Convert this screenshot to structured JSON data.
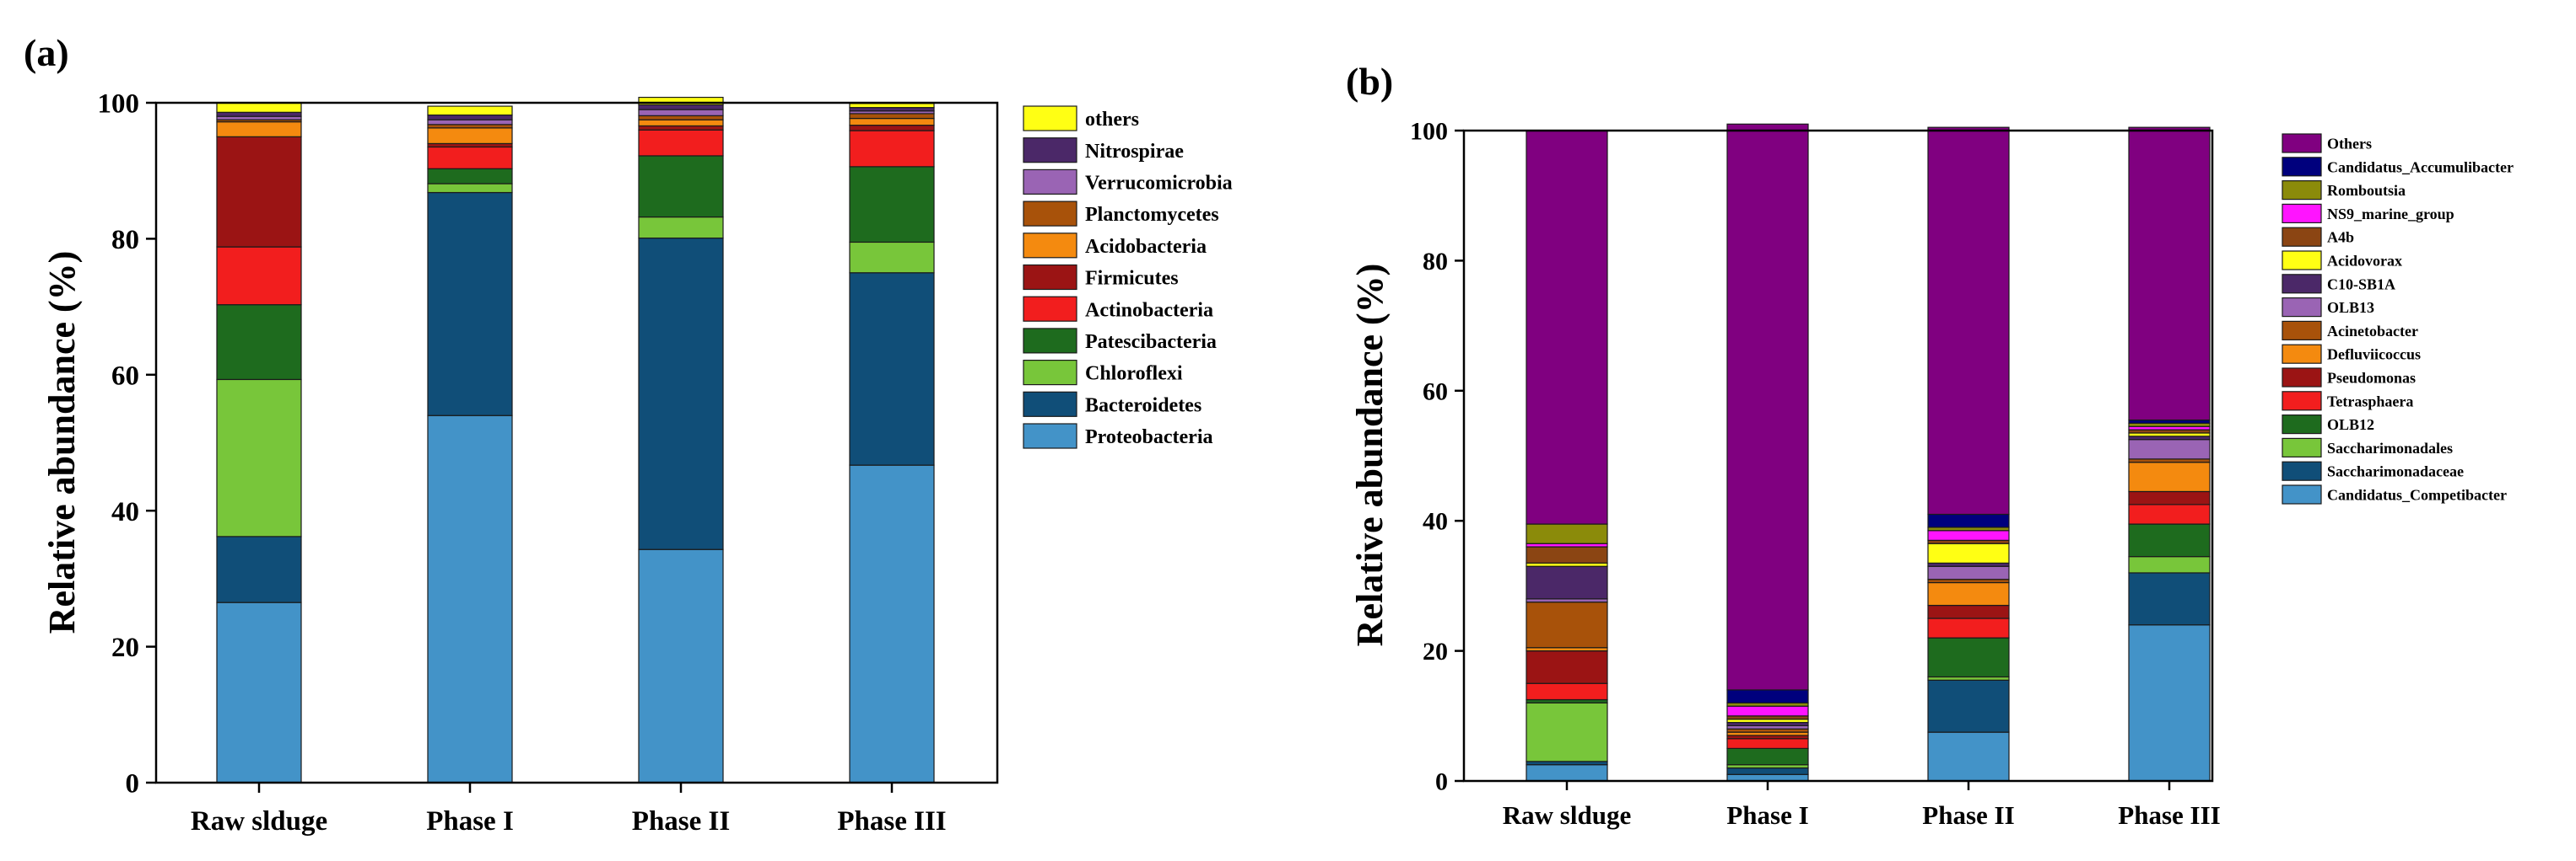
{
  "chart_data": [
    {
      "type": "stacked-bar",
      "panel_label": "(a)",
      "ylabel": "Relative abundance (%)",
      "xlabel": "",
      "ylim": [
        0,
        100
      ],
      "yticks": [
        0,
        20,
        40,
        60,
        80,
        100
      ],
      "categories": [
        "Raw slduge",
        "Phase I",
        "Phase II",
        "Phase III"
      ],
      "legend_position": "right",
      "series": [
        {
          "name": "Proteobacteria",
          "color": "#4393C8",
          "values": [
            26.5,
            54.0,
            34.3,
            46.7
          ]
        },
        {
          "name": "Bacteroidetes",
          "color": "#104E78",
          "values": [
            9.7,
            32.8,
            45.8,
            28.3
          ]
        },
        {
          "name": "Chloroflexi",
          "color": "#78C63A",
          "values": [
            23.1,
            1.3,
            3.1,
            4.5
          ]
        },
        {
          "name": "Patescibacteria",
          "color": "#1E6B1E",
          "values": [
            11.0,
            2.2,
            9.0,
            11.1
          ]
        },
        {
          "name": "Actinobacteria",
          "color": "#F21E1E",
          "values": [
            8.5,
            3.2,
            3.8,
            5.3
          ]
        },
        {
          "name": "Firmicutes",
          "color": "#9B1414",
          "values": [
            16.2,
            0.5,
            0.6,
            0.8
          ]
        },
        {
          "name": "Acidobacteria",
          "color": "#F48A0F",
          "values": [
            2.2,
            2.3,
            0.9,
            1.0
          ]
        },
        {
          "name": "Planctomycetes",
          "color": "#A8520A",
          "values": [
            0.3,
            0.5,
            0.6,
            0.7
          ]
        },
        {
          "name": "Verrucomicrobia",
          "color": "#9A64B4",
          "values": [
            0.5,
            0.7,
            0.9,
            0.4
          ]
        },
        {
          "name": "Nitrospirae",
          "color": "#4B2868",
          "values": [
            0.6,
            0.7,
            0.7,
            0.5
          ]
        },
        {
          "name": "others",
          "color": "#FFFF14",
          "values": [
            1.4,
            1.3,
            1.1,
            0.6
          ]
        }
      ]
    },
    {
      "type": "stacked-bar",
      "panel_label": "(b)",
      "ylabel": "Relative abundance (%)",
      "xlabel": "",
      "ylim": [
        0,
        100
      ],
      "yticks": [
        0,
        20,
        40,
        60,
        80,
        100
      ],
      "categories": [
        "Raw slduge",
        "Phase I",
        "Phase II",
        "Phase III"
      ],
      "legend_position": "right",
      "series": [
        {
          "name": "Candidatus_Competibacter",
          "color": "#4393C8",
          "values": [
            2.5,
            1.0,
            7.5,
            24.0
          ]
        },
        {
          "name": "Saccharimonadaceae",
          "color": "#104E78",
          "values": [
            0.5,
            1.0,
            8.0,
            8.0
          ]
        },
        {
          "name": "Saccharimonadales",
          "color": "#78C63A",
          "values": [
            9.0,
            0.5,
            0.5,
            2.5
          ]
        },
        {
          "name": "OLB12",
          "color": "#1E6B1E",
          "values": [
            0.5,
            2.5,
            6.0,
            5.0
          ]
        },
        {
          "name": "Tetrasphaera",
          "color": "#F21E1E",
          "values": [
            2.5,
            1.5,
            3.0,
            3.0
          ]
        },
        {
          "name": "Pseudomonas",
          "color": "#9B1414",
          "values": [
            5.0,
            0.5,
            2.0,
            2.0
          ]
        },
        {
          "name": "Defluviicoccus",
          "color": "#F48A0F",
          "values": [
            0.5,
            0.5,
            3.5,
            4.5
          ]
        },
        {
          "name": "Acinetobacter",
          "color": "#A8520A",
          "values": [
            7.0,
            0.5,
            0.5,
            0.5
          ]
        },
        {
          "name": "OLB13",
          "color": "#9A64B4",
          "values": [
            0.5,
            0.5,
            2.0,
            3.0
          ]
        },
        {
          "name": "C10-SB1A",
          "color": "#4B2868",
          "values": [
            5.0,
            0.5,
            0.5,
            0.5
          ]
        },
        {
          "name": "Acidovorax",
          "color": "#FFFF14",
          "values": [
            0.5,
            0.5,
            3.0,
            0.5
          ]
        },
        {
          "name": "A4b",
          "color": "#8B4513",
          "values": [
            2.5,
            0.5,
            0.5,
            0.5
          ]
        },
        {
          "name": "NS9_marine_group",
          "color": "#FF14FF",
          "values": [
            0.5,
            1.5,
            1.5,
            0.5
          ]
        },
        {
          "name": "Romboutsia",
          "color": "#8B8B0A",
          "values": [
            3.0,
            0.5,
            0.5,
            0.5
          ]
        },
        {
          "name": "Candidatus_Accumulibacter",
          "color": "#00007D",
          "values": [
            0.0,
            2.0,
            2.0,
            0.5
          ]
        },
        {
          "name": "Others",
          "color": "#800080",
          "values": [
            60.5,
            87.0,
            59.5,
            45.0
          ]
        }
      ]
    }
  ]
}
